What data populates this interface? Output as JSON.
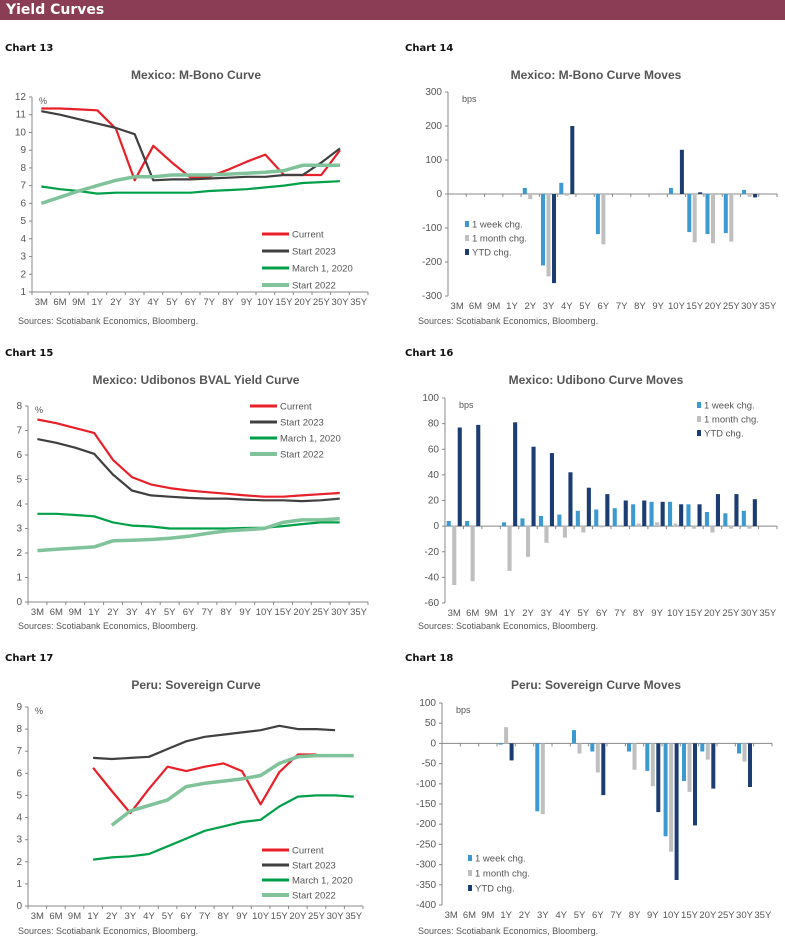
{
  "header": {
    "title": "Yield Curves"
  },
  "colors": {
    "header": "#8b3d56",
    "current": "#e8202a",
    "start2023": "#404040",
    "march2020": "#00a04a",
    "start2022": "#80c29a",
    "week": "#3d9ad1",
    "month": "#bfbfbf",
    "ytd": "#1b3d72"
  },
  "source": "Sources: Scotiabank Economics, Bloomberg.",
  "chart_data": [
    {
      "label": "Chart 13",
      "type": "line",
      "title": "Mexico: M-Bono Curve",
      "unit": "%",
      "ylim": [
        1,
        12
      ],
      "ystep": 1,
      "legend": "bottom-right",
      "categories": [
        "3M",
        "6M",
        "9M",
        "1Y",
        "2Y",
        "3Y",
        "4Y",
        "5Y",
        "6Y",
        "7Y",
        "8Y",
        "9Y",
        "10Y",
        "15Y",
        "20Y",
        "25Y",
        "30Y",
        "35Y"
      ],
      "series": [
        {
          "name": "Current",
          "color": "#e8202a",
          "values": [
            11.35,
            11.35,
            11.3,
            11.25,
            10.2,
            7.3,
            9.25,
            8.3,
            7.45,
            7.5,
            7.9,
            8.35,
            8.75,
            7.6,
            7.6,
            7.6,
            9.0,
            null
          ]
        },
        {
          "name": "Start 2023",
          "color": "#404040",
          "values": [
            11.2,
            11.0,
            10.75,
            10.5,
            10.25,
            9.9,
            7.3,
            7.35,
            7.35,
            7.4,
            7.45,
            7.5,
            7.5,
            7.6,
            7.6,
            8.3,
            9.1,
            null
          ]
        },
        {
          "name": "March 1, 2020",
          "color": "#00a04a",
          "values": [
            6.95,
            6.8,
            6.7,
            6.55,
            6.6,
            6.6,
            6.6,
            6.6,
            6.6,
            6.7,
            6.75,
            6.8,
            6.9,
            7.0,
            7.15,
            7.2,
            7.25,
            null
          ]
        },
        {
          "name": "Start 2022",
          "color": "#80c29a",
          "values": [
            6.0,
            6.35,
            6.7,
            7.0,
            7.3,
            7.5,
            7.5,
            7.6,
            7.6,
            7.6,
            7.65,
            7.7,
            7.75,
            7.85,
            8.15,
            8.15,
            8.15,
            null
          ]
        }
      ]
    },
    {
      "label": "Chart 14",
      "type": "bar",
      "title": "Mexico: M-Bono Curve Moves",
      "unit": "bps",
      "ylim": [
        -300,
        300
      ],
      "ystep": 100,
      "legend": "left",
      "categories": [
        "3M",
        "6M",
        "9M",
        "1Y",
        "2Y",
        "3Y",
        "4Y",
        "5Y",
        "6Y",
        "7Y",
        "8Y",
        "9Y",
        "10Y",
        "15Y",
        "20Y",
        "25Y",
        "30Y",
        "35Y"
      ],
      "series": [
        {
          "name": "1 week chg.",
          "color": "#3d9ad1",
          "values": [
            null,
            null,
            null,
            null,
            18,
            -210,
            33,
            null,
            -118,
            null,
            null,
            null,
            18,
            -112,
            -118,
            -115,
            12,
            null
          ]
        },
        {
          "name": "1 month chg.",
          "color": "#bfbfbf",
          "values": [
            null,
            null,
            null,
            null,
            -15,
            -242,
            -5,
            null,
            -148,
            null,
            null,
            null,
            -3,
            -142,
            -145,
            -140,
            -8,
            null
          ]
        },
        {
          "name": "YTD chg.",
          "color": "#1b3d72",
          "values": [
            null,
            null,
            null,
            null,
            null,
            -262,
            200,
            null,
            null,
            null,
            null,
            null,
            130,
            5,
            null,
            null,
            -10,
            null
          ]
        }
      ]
    },
    {
      "label": "Chart 15",
      "type": "line",
      "title": "Mexico: Udibonos BVAL Yield Curve",
      "unit": "%",
      "ylim": [
        0,
        8
      ],
      "ystep": 1,
      "legend": "top-right",
      "categories": [
        "3M",
        "6M",
        "9M",
        "1Y",
        "2Y",
        "3Y",
        "4Y",
        "5Y",
        "6Y",
        "7Y",
        "8Y",
        "9Y",
        "10Y",
        "15Y",
        "20Y",
        "25Y",
        "30Y",
        "35Y"
      ],
      "series": [
        {
          "name": "Current",
          "color": "#e8202a",
          "values": [
            7.45,
            7.3,
            7.1,
            6.9,
            5.8,
            5.1,
            4.8,
            4.65,
            4.55,
            4.48,
            4.42,
            4.35,
            4.3,
            4.3,
            4.35,
            4.4,
            4.45,
            null
          ]
        },
        {
          "name": "Start 2023",
          "color": "#404040",
          "values": [
            6.65,
            6.5,
            6.3,
            6.05,
            5.2,
            4.55,
            4.35,
            4.3,
            4.25,
            4.22,
            4.22,
            4.18,
            4.15,
            4.15,
            4.12,
            4.15,
            4.22,
            null
          ]
        },
        {
          "name": "March 1, 2020",
          "color": "#00a04a",
          "values": [
            3.6,
            3.6,
            3.55,
            3.5,
            3.25,
            3.12,
            3.08,
            3.0,
            3.0,
            3.0,
            3.0,
            3.02,
            3.03,
            3.1,
            3.18,
            3.25,
            3.25,
            null
          ]
        },
        {
          "name": "Start 2022",
          "color": "#80c29a",
          "values": [
            2.1,
            2.15,
            2.2,
            2.25,
            2.5,
            2.52,
            2.55,
            2.6,
            2.68,
            2.8,
            2.9,
            2.95,
            3.0,
            3.25,
            3.35,
            3.35,
            3.4,
            null
          ]
        }
      ]
    },
    {
      "label": "Chart 16",
      "type": "bar",
      "title": "Mexico: Udibono Curve Moves",
      "unit": "bps",
      "ylim": [
        -60,
        100
      ],
      "ystep": 20,
      "legend": "top-right",
      "categories": [
        "3M",
        "6M",
        "9M",
        "1Y",
        "2Y",
        "3Y",
        "4Y",
        "5Y",
        "6Y",
        "7Y",
        "8Y",
        "9Y",
        "10Y",
        "15Y",
        "20Y",
        "25Y",
        "30Y",
        "35Y"
      ],
      "series": [
        {
          "name": "1 week chg.",
          "color": "#3d9ad1",
          "values": [
            4,
            4,
            null,
            3,
            6,
            8,
            9,
            12,
            13,
            14,
            17,
            19,
            19,
            17,
            11,
            10,
            12,
            null
          ]
        },
        {
          "name": "1 month chg.",
          "color": "#bfbfbf",
          "values": [
            -46,
            -43,
            null,
            -35,
            -24,
            -13,
            -9,
            -5,
            -1,
            1,
            2,
            3,
            2,
            -2,
            -5,
            -2,
            -2,
            null
          ]
        },
        {
          "name": "YTD chg.",
          "color": "#1b3d72",
          "values": [
            77,
            79,
            null,
            81,
            62,
            57,
            42,
            30,
            25,
            20,
            20,
            19,
            17,
            17,
            25,
            25,
            21,
            null
          ]
        }
      ]
    },
    {
      "label": "Chart 17",
      "type": "line",
      "title": "Peru: Sovereign Curve",
      "unit": "%",
      "ylim": [
        0,
        9
      ],
      "ystep": 1,
      "legend": "bottom-right",
      "categories": [
        "3M",
        "6M",
        "9M",
        "1Y",
        "2Y",
        "3Y",
        "4Y",
        "5Y",
        "6Y",
        "7Y",
        "8Y",
        "9Y",
        "10Y",
        "15Y",
        "20Y",
        "25Y",
        "30Y",
        "35Y"
      ],
      "series": [
        {
          "name": "Current",
          "color": "#e8202a",
          "values": [
            null,
            null,
            null,
            6.25,
            5.2,
            4.2,
            5.3,
            6.3,
            6.1,
            6.3,
            6.45,
            6.1,
            4.6,
            6.05,
            6.85,
            6.85,
            null,
            null
          ]
        },
        {
          "name": "Start 2023",
          "color": "#404040",
          "values": [
            null,
            null,
            null,
            6.7,
            6.65,
            6.7,
            6.75,
            7.1,
            7.45,
            7.65,
            7.75,
            7.85,
            7.95,
            8.15,
            8.0,
            8.0,
            7.95,
            null
          ]
        },
        {
          "name": "March 1, 2020",
          "color": "#00a04a",
          "values": [
            null,
            null,
            null,
            2.1,
            2.2,
            2.25,
            2.35,
            2.7,
            3.05,
            3.4,
            3.6,
            3.8,
            3.9,
            4.5,
            4.95,
            5.0,
            5.0,
            4.95
          ]
        },
        {
          "name": "Start 2022",
          "color": "#80c29a",
          "values": [
            null,
            null,
            null,
            null,
            3.65,
            4.3,
            4.55,
            4.8,
            5.4,
            5.55,
            5.65,
            5.75,
            5.9,
            6.45,
            6.75,
            6.8,
            6.8,
            6.8
          ]
        }
      ]
    },
    {
      "label": "Chart 18",
      "type": "bar",
      "title": "Peru: Sovereign Curve Moves",
      "unit": "bps",
      "ylim": [
        -400,
        100
      ],
      "ystep": 50,
      "legend": "bottom-left",
      "categories": [
        "3M",
        "6M",
        "9M",
        "1Y",
        "2Y",
        "3Y",
        "4Y",
        "5Y",
        "6Y",
        "7Y",
        "8Y",
        "9Y",
        "10Y",
        "15Y",
        "20Y",
        "25Y",
        "30Y",
        "35Y"
      ],
      "series": [
        {
          "name": "1 week chg.",
          "color": "#3d9ad1",
          "values": [
            null,
            null,
            null,
            -3,
            null,
            -168,
            null,
            33,
            -20,
            null,
            -20,
            -68,
            -230,
            -93,
            -20,
            null,
            -25,
            null
          ]
        },
        {
          "name": "1 month chg.",
          "color": "#bfbfbf",
          "values": [
            null,
            null,
            null,
            40,
            null,
            -175,
            null,
            -25,
            -72,
            null,
            -65,
            -106,
            -268,
            -120,
            -40,
            null,
            -45,
            null
          ]
        },
        {
          "name": "YTD chg.",
          "color": "#1b3d72",
          "values": [
            null,
            null,
            null,
            -42,
            null,
            null,
            null,
            null,
            -128,
            null,
            null,
            -170,
            -338,
            -203,
            -112,
            null,
            -108,
            null
          ]
        }
      ]
    }
  ]
}
